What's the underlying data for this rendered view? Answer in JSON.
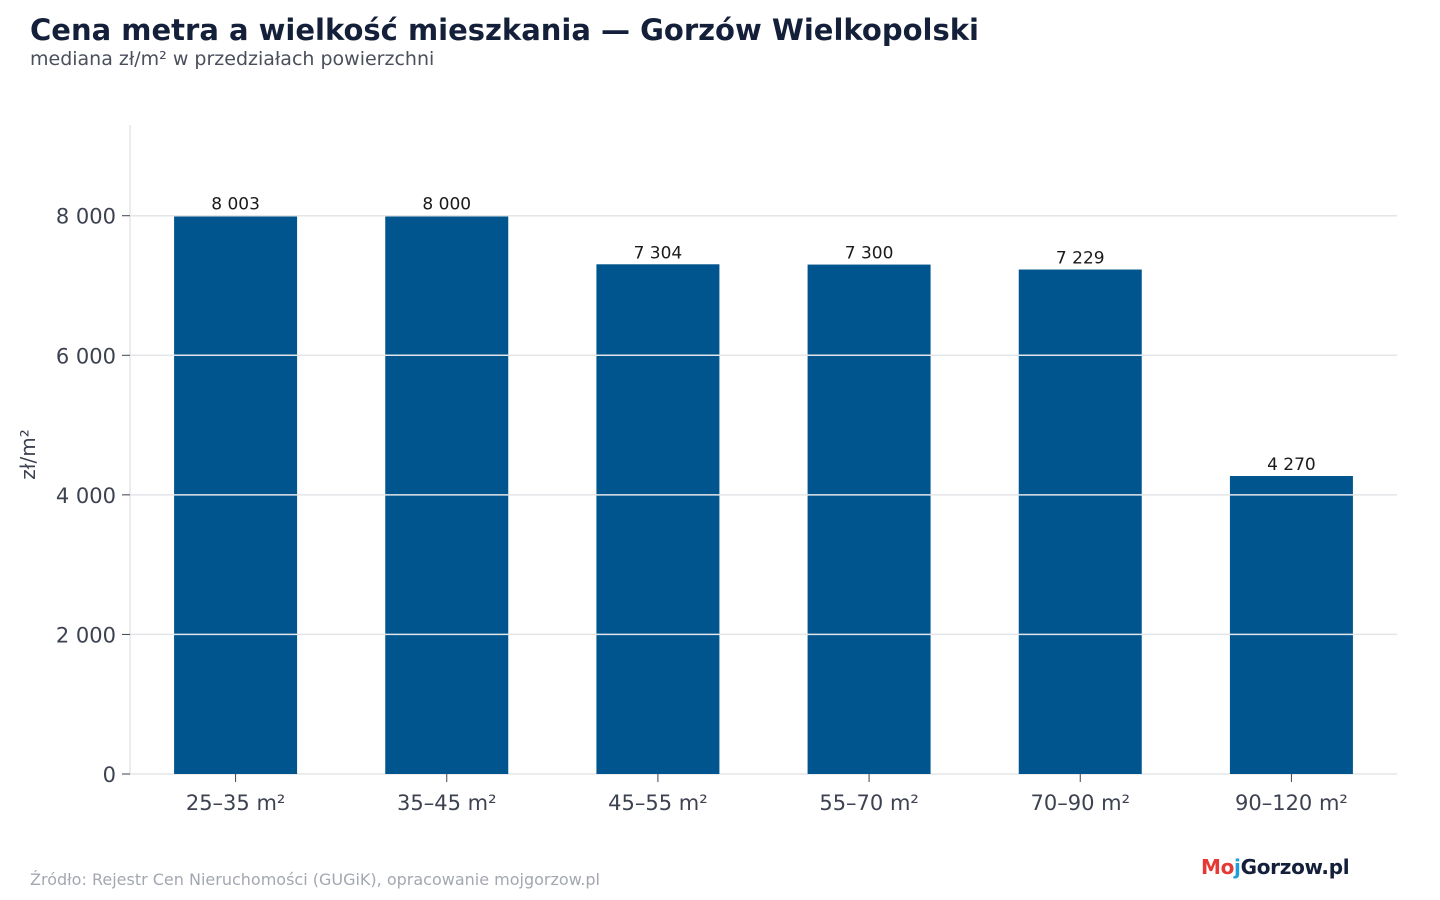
{
  "header": {
    "title": "Cena metra a wielkość mieszkania — Gorzów Wielkopolski",
    "subtitle": "mediana zł/m² w przedziałach powierzchni"
  },
  "footer": {
    "source": "Źródło: Rejestr Cen Nieruchomości (GUGiK), opracowanie mojgorzow.pl"
  },
  "logo": {
    "part1": "Mo",
    "part2": "j",
    "part3": "Gorzow.pl"
  },
  "colors": {
    "bar": "#00558e",
    "grid": "#e3e5e8",
    "axis_text": "#3d4250",
    "title": "#14203a"
  },
  "chart_data": {
    "type": "bar",
    "categories": [
      "25–35 m²",
      "35–45 m²",
      "45–55 m²",
      "55–70 m²",
      "70–90 m²",
      "90–120 m²"
    ],
    "values": [
      8003,
      8000,
      7304,
      7300,
      7229,
      4270
    ],
    "value_labels": [
      "8 003",
      "8 000",
      "7 304",
      "7 300",
      "7 229",
      "4 270"
    ],
    "title": "Cena metra a wielkość mieszkania — Gorzów Wielkopolski",
    "subtitle": "mediana zł/m² w przedziałach powierzchni",
    "xlabel": "",
    "ylabel": "zł/m²",
    "ylim": [
      0,
      9300
    ],
    "yticks": [
      0,
      2000,
      4000,
      6000,
      8000
    ],
    "ytick_labels": [
      "0",
      "2 000",
      "4 000",
      "6 000",
      "8 000"
    ],
    "grid": true,
    "legend": "none"
  }
}
